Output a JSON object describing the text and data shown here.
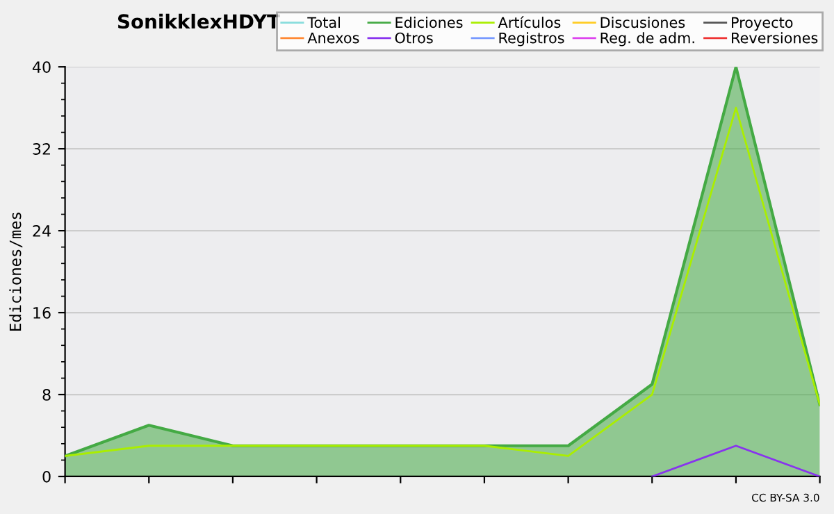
{
  "chart_data": {
    "type": "line",
    "title": "SonikklexHDYT",
    "ylabel": "Ediciones/mes",
    "categories": [
      null,
      null,
      null,
      null,
      null,
      null,
      null,
      null,
      null,
      null
    ],
    "series": [
      {
        "name": "Total",
        "color": "#88dddd",
        "values": [
          null,
          null,
          null,
          null,
          null,
          null,
          null,
          null,
          null,
          null
        ]
      },
      {
        "name": "Anexos",
        "color": "#ff8833",
        "values": [
          null,
          null,
          null,
          null,
          null,
          null,
          null,
          null,
          null,
          null
        ]
      },
      {
        "name": "Ediciones",
        "color": "#44aa44",
        "type": "area",
        "values": [
          2,
          5,
          3,
          3,
          3,
          3,
          3,
          9,
          40,
          7
        ]
      },
      {
        "name": "Otros",
        "color": "#8833ee",
        "values": [
          null,
          null,
          null,
          null,
          null,
          null,
          null,
          0,
          3,
          0
        ]
      },
      {
        "name": "Artículos",
        "color": "#aaee00",
        "values": [
          2,
          3,
          3,
          3,
          3,
          3,
          2,
          8,
          36,
          7
        ]
      },
      {
        "name": "Registros",
        "color": "#7799ff",
        "values": [
          null,
          null,
          null,
          null,
          null,
          null,
          null,
          null,
          null,
          null
        ]
      },
      {
        "name": "Discusiones",
        "color": "#ffcc22",
        "values": [
          null,
          null,
          null,
          null,
          null,
          null,
          null,
          null,
          null,
          null
        ]
      },
      {
        "name": "Reg. de adm.",
        "color": "#dd44ee",
        "values": [
          null,
          null,
          null,
          null,
          null,
          null,
          null,
          null,
          null,
          null
        ]
      },
      {
        "name": "Proyecto",
        "color": "#555555",
        "values": [
          null,
          null,
          null,
          null,
          null,
          null,
          null,
          null,
          null,
          null
        ]
      },
      {
        "name": "Reversiones",
        "color": "#ee3333",
        "values": [
          null,
          null,
          null,
          null,
          null,
          null,
          null,
          null,
          null,
          null
        ]
      }
    ],
    "ylim": [
      0,
      40
    ],
    "yticks": [
      0,
      8,
      16,
      24,
      32,
      40
    ],
    "grid": "y",
    "legend": "top right",
    "annotations": [
      "CC BY-SA 3.0"
    ]
  }
}
